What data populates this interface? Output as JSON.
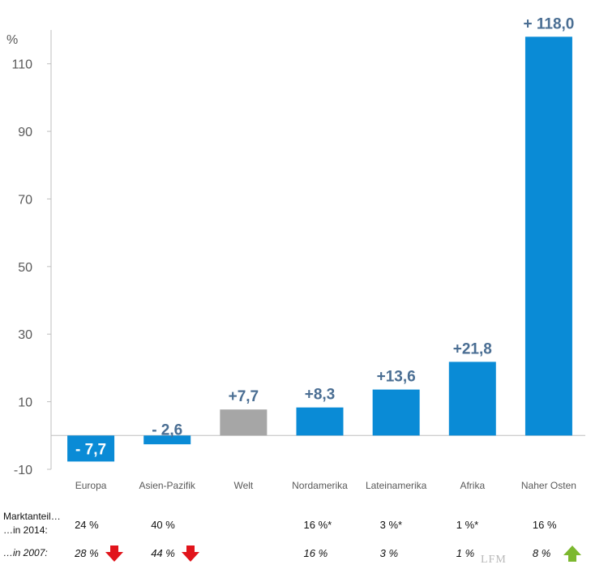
{
  "chart_data": {
    "type": "bar",
    "ylabel": "%",
    "ylim": [
      -10,
      120
    ],
    "yticks": [
      -10,
      10,
      30,
      50,
      70,
      90,
      110
    ],
    "categories": [
      "Europa",
      "Asien-Pazifik",
      "Welt",
      "Nordamerika",
      "Lateinamerika",
      "Afrika",
      "Naher Osten"
    ],
    "values": [
      -7.7,
      -2.6,
      7.7,
      8.3,
      13.6,
      21.8,
      118.0
    ],
    "data_labels": [
      "- 7,7",
      "- 2,6",
      "+7,7",
      "+8,3",
      "+13,6",
      "+21,8",
      "+ 118,0"
    ],
    "colors": {
      "bar": "#0a8bd6",
      "highlight_bar": "#a6a6a6",
      "label": "#4a6e93",
      "negative_label": "#ffffff",
      "axis": "#bfbfbf",
      "arrow_down": "#e1141b",
      "arrow_up": "#7cb82f"
    },
    "highlight_index": 2,
    "grid": false,
    "legend": "none"
  },
  "market_share": {
    "label_line1": "Marktanteil…",
    "label_line2": "…in 2014:",
    "label_2007": "…in 2007:",
    "values_2014": [
      "24 %",
      "40 %",
      "",
      "16 %*",
      "3 %*",
      "1 %*",
      "16 %"
    ],
    "values_2007": [
      "28 %",
      "44 %",
      "",
      "16 %",
      "3 %",
      "1 %",
      "8 %"
    ],
    "trend_2007": [
      "down",
      "down",
      "",
      "",
      "",
      "",
      "up"
    ]
  },
  "watermark": "LFM",
  "icons": {
    "down": "red-down-arrow-icon",
    "up": "green-up-arrow-icon"
  }
}
